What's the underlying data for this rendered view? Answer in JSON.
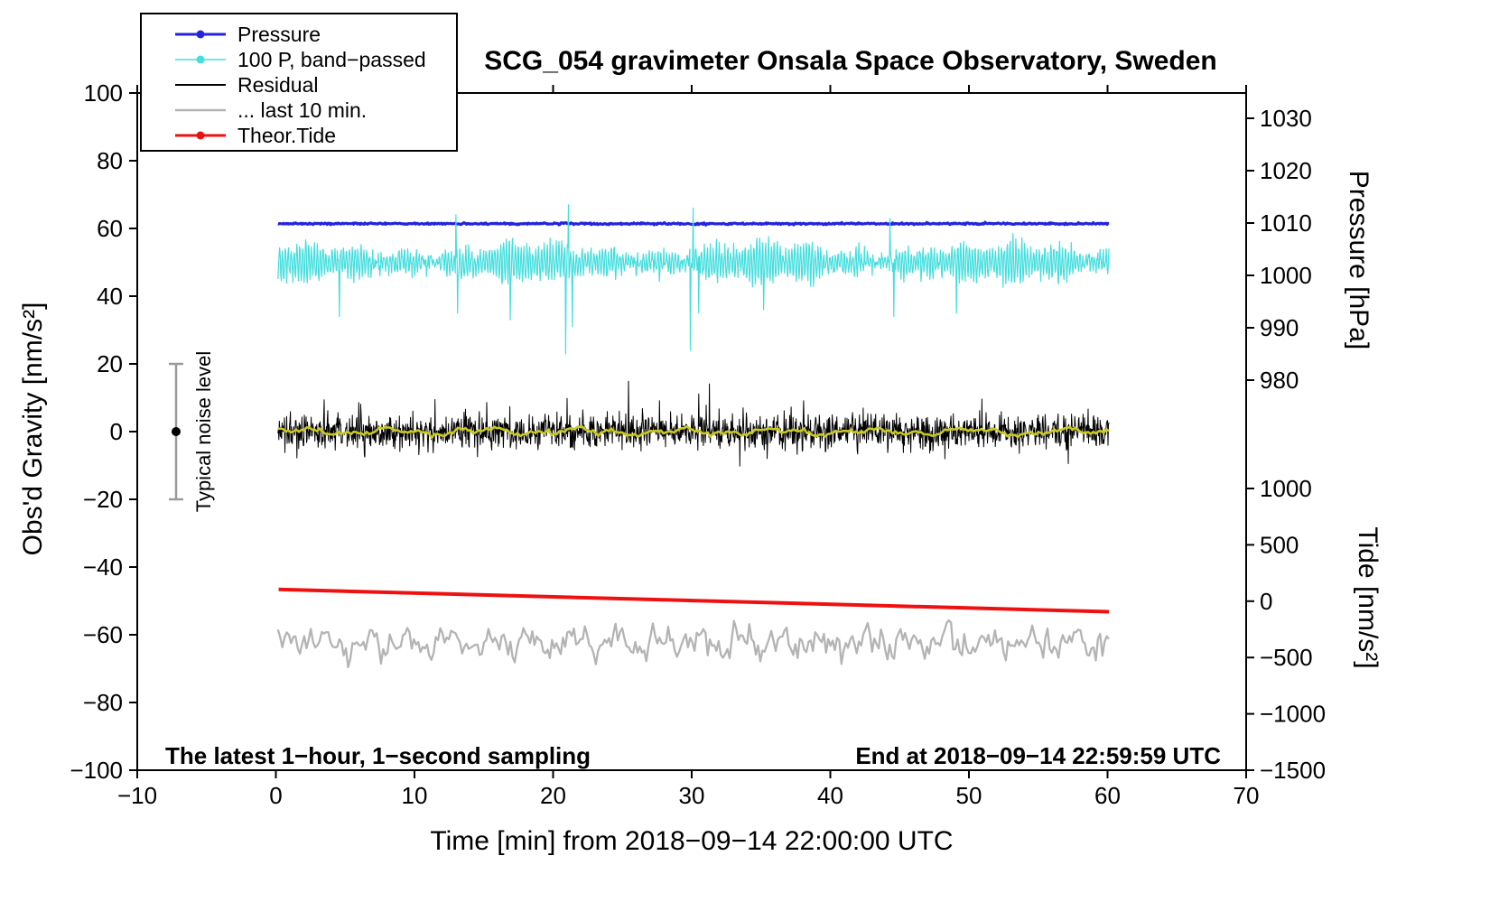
{
  "title": "SCG_054 gravimeter Onsala Space Observatory, Sweden",
  "xlabel": "Time [min] from 2018−09−14 22:00:00 UTC",
  "ylabels": {
    "left": "Obs'd Gravity [nm/s²]",
    "right_top": "Pressure [hPa]",
    "right_bottom": "Tide [nm/s²]"
  },
  "annotations": {
    "sampling": "The latest 1−hour, 1−second sampling",
    "end": "End at 2018−09−14 22:59:59 UTC",
    "noise_label": "Typical noise level"
  },
  "legend": [
    {
      "label": "Pressure",
      "color": "#2424dd",
      "dot": true,
      "lw": 3
    },
    {
      "label": "100 P, band−passed",
      "color": "#45dede",
      "dot": true,
      "lw": 1.5
    },
    {
      "label": "Residual",
      "color": "#000000",
      "dot": false,
      "lw": 2
    },
    {
      "label": "... last 10 min.",
      "color": "#b4b4b4",
      "dot": false,
      "lw": 2.5
    },
    {
      "label": "Theor.Tide",
      "color": "#ee1111",
      "dot": true,
      "lw": 3
    }
  ],
  "axes": {
    "x": {
      "min": -10,
      "max": 70,
      "ticks": [
        -10,
        0,
        10,
        20,
        30,
        40,
        50,
        60,
        70
      ]
    },
    "gravity": {
      "min": -100,
      "max": 100,
      "ticks": [
        100,
        80,
        60,
        40,
        20,
        0,
        -20,
        -40,
        -60,
        -80,
        -100
      ]
    },
    "pressure": {
      "ticks": [
        1030,
        1020,
        1010,
        1000,
        990,
        980
      ]
    },
    "tide": {
      "ticks": [
        1000,
        500,
        0,
        -500,
        -1000,
        -1500
      ]
    }
  },
  "chart_data": {
    "type": "line",
    "t_start": 0.15,
    "t_end": 60.1,
    "seed": 20180914,
    "noise_level_bar": {
      "x": -7.2,
      "lo": -20,
      "hi": 20,
      "dot": 0
    },
    "series": [
      {
        "name": "Pressure",
        "color": "#2424dd",
        "width": 3.2,
        "gen": "gauss",
        "mean": 61.4,
        "sigma": 0.12,
        "n": 900,
        "value_hpa": 1010.3
      },
      {
        "name": "100 P, band-passed",
        "color": "#45dede",
        "width": 1.2,
        "gen": "carrier",
        "mean": 50,
        "period": 0.21,
        "amp": 3.6,
        "sigma": 1.1,
        "n": 1500,
        "amp_mods": [
          {
            "a": 1.4,
            "f": 0.37,
            "ph": 1.1
          },
          {
            "a": 1.0,
            "f": 1.73,
            "ph": 4.0
          }
        ],
        "spikes": [
          {
            "t": 4.6,
            "v": 34
          },
          {
            "t": 13.1,
            "v": 35
          },
          {
            "t": 16.9,
            "v": 33
          },
          {
            "t": 20.9,
            "v": 23
          },
          {
            "t": 21.4,
            "v": 31
          },
          {
            "t": 29.9,
            "v": 24
          },
          {
            "t": 30.5,
            "v": 35
          },
          {
            "t": 35.2,
            "v": 36
          },
          {
            "t": 44.6,
            "v": 34
          },
          {
            "t": 49.1,
            "v": 35
          },
          {
            "t": 13.0,
            "v": 64
          },
          {
            "t": 21.1,
            "v": 67
          },
          {
            "t": 30.1,
            "v": 66
          },
          {
            "t": 44.3,
            "v": 63
          }
        ]
      },
      {
        "name": "Residual",
        "color": "#000000",
        "width": 1,
        "gen": "gauss",
        "mean": 0,
        "sigma": 2.6,
        "n": 1800,
        "tail_p": 0.03,
        "tail_mult": 1.8
      },
      {
        "name": "Residual smoothed",
        "color": "#c9c920",
        "width": 2.6,
        "gen": "sines",
        "mean": 0,
        "sigma": 0.35,
        "n": 320,
        "sines": [
          {
            "a": 0.7,
            "f": 0.9,
            "ph": 0.5
          },
          {
            "a": 0.5,
            "f": 2.3,
            "ph": 2.2
          }
        ]
      },
      {
        "name": "Theor.Tide",
        "color": "#ee1111",
        "width": 4,
        "gen": "segment",
        "points": [
          [
            0.2,
            -46.6
          ],
          [
            60.1,
            -53.2
          ]
        ]
      },
      {
        "name": "... last 10 min.",
        "color": "#b4b4b4",
        "width": 2.3,
        "gen": "sines",
        "mean": -62.3,
        "sigma": 1.5,
        "n": 380,
        "sines": [
          {
            "a": 2.0,
            "f": 2.1,
            "ph": 0.3
          },
          {
            "a": 1.6,
            "f": 5.3,
            "ph": 1.9
          },
          {
            "a": 1.2,
            "f": 11.7,
            "ph": 4.4
          }
        ]
      }
    ]
  }
}
